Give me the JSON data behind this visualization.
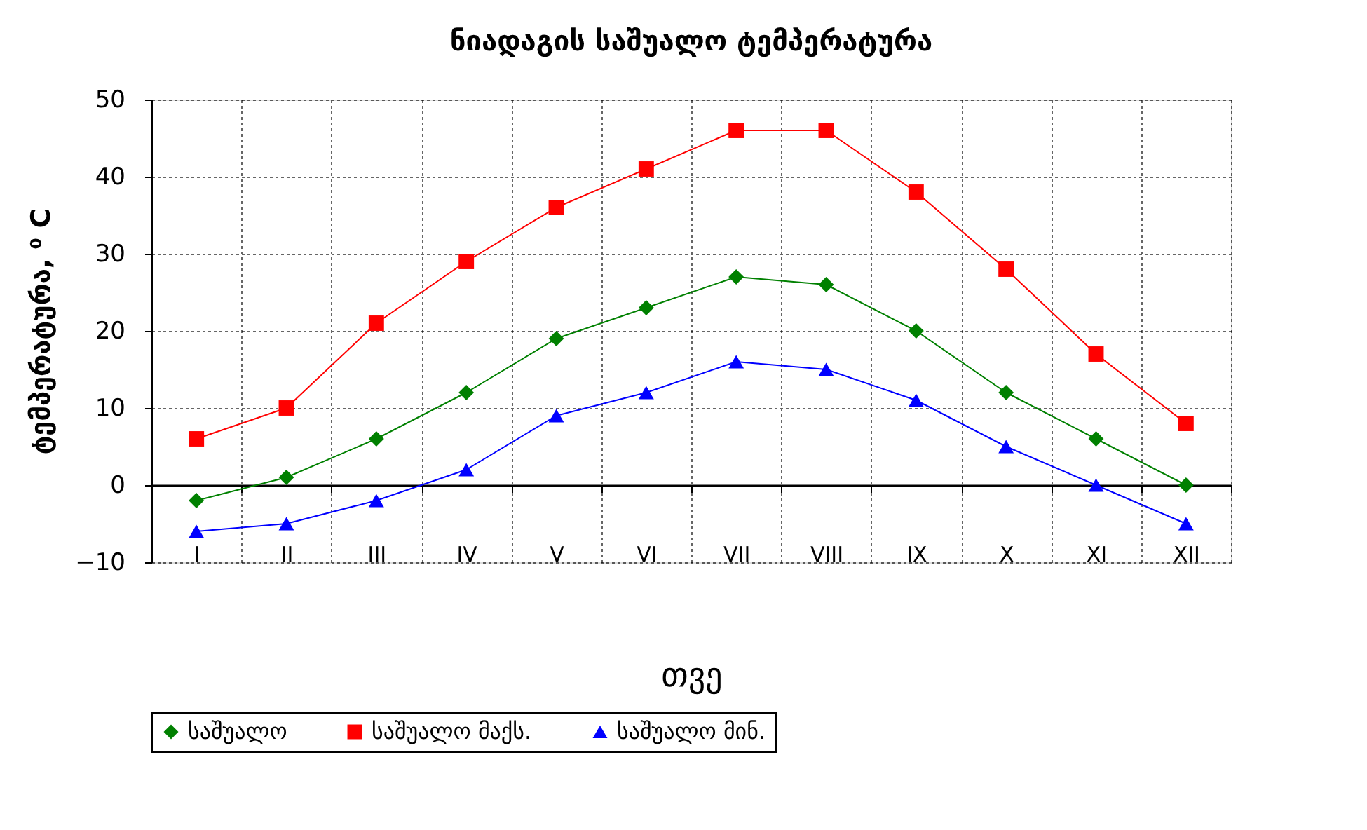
{
  "chart_data": {
    "type": "line",
    "title": "ნიადაგის საშუალო ტემპერატურა",
    "xlabel": "თვე",
    "ylabel": "ტემპერატურა, ⁰ C",
    "categories": [
      "I",
      "II",
      "III",
      "IV",
      "V",
      "VI",
      "VII",
      "VIII",
      "IX",
      "X",
      "XI",
      "XII"
    ],
    "series": [
      {
        "name": "საშუალო",
        "color": "#008000",
        "marker": "diamond",
        "values": [
          -2,
          1,
          6,
          12,
          19,
          23,
          27,
          26,
          20,
          12,
          6,
          0
        ]
      },
      {
        "name": "საშუალო მაქს.",
        "color": "#ff0000",
        "marker": "square",
        "values": [
          6,
          10,
          21,
          29,
          36,
          41,
          46,
          46,
          38,
          28,
          17,
          8
        ]
      },
      {
        "name": "საშუალო მინ.",
        "color": "#0000ff",
        "marker": "triangle",
        "values": [
          -6,
          -5,
          -2,
          2,
          9,
          12,
          16,
          15,
          11,
          5,
          0,
          -5
        ]
      }
    ],
    "ylim": [
      -10,
      50
    ],
    "yticks": [
      -10,
      0,
      10,
      20,
      30,
      40,
      50
    ],
    "grid": true,
    "legend": "bottom",
    "line_style": "solid"
  }
}
